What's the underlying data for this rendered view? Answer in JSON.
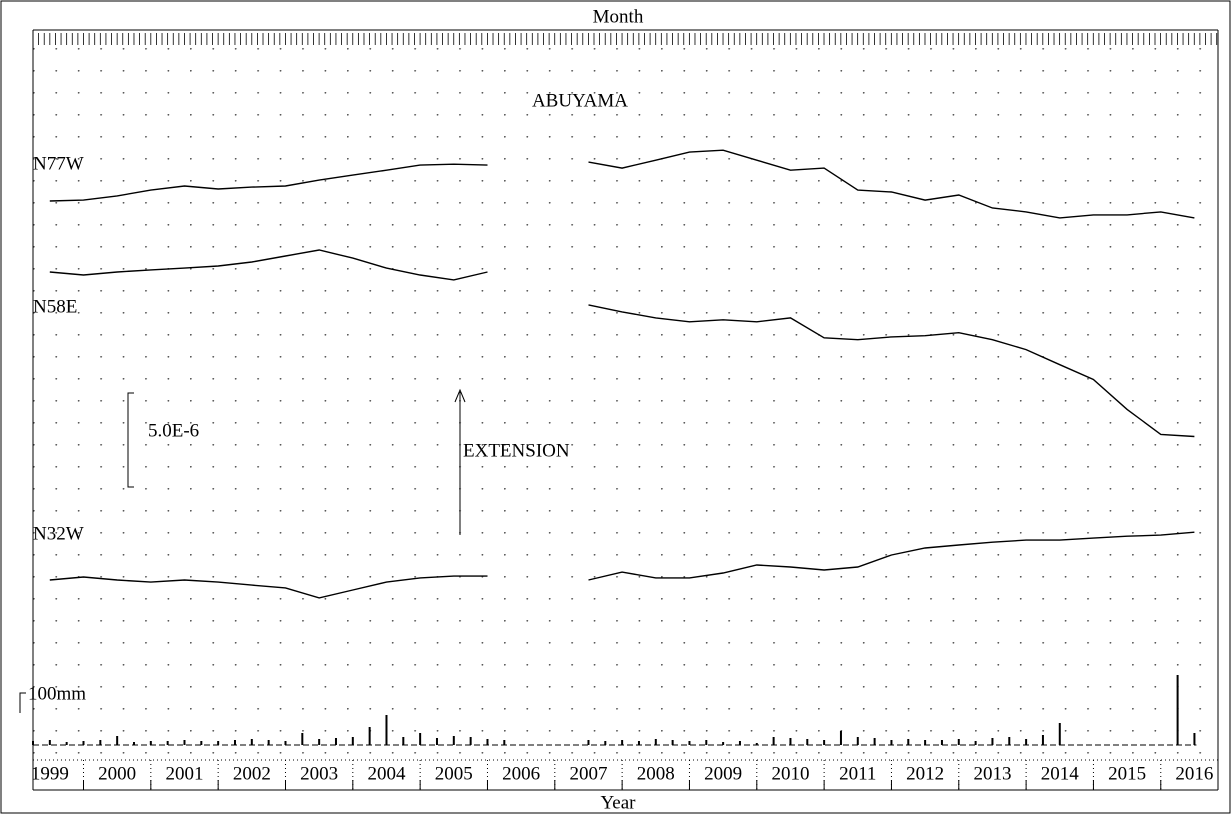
{
  "chart_data": [
    {
      "type": "line",
      "title": "ABUYAMA",
      "top_label": "Month",
      "x_label": "Year",
      "annotation": "EXTENSION",
      "scale_bar": {
        "label": "5.0E-6",
        "value": 5e-06
      },
      "xlim": [
        1999.25,
        2016.85
      ],
      "xticks": [
        2000,
        2001,
        2002,
        2003,
        2004,
        2005,
        2006,
        2007,
        2008,
        2009,
        2010,
        2011,
        2012,
        2013,
        2014,
        2015,
        2016
      ],
      "categories": [
        "1999",
        "2000",
        "2001",
        "2002",
        "2003",
        "2004",
        "2005",
        "2006",
        "2007",
        "2008",
        "2009",
        "2010",
        "2011",
        "2012",
        "2013",
        "2014",
        "2015",
        "2016"
      ],
      "x": [
        1999.5,
        2000,
        2000.5,
        2001,
        2001.5,
        2002,
        2002.5,
        2003,
        2003.5,
        2004,
        2004.5,
        2005,
        2005.5,
        2006,
        2006.5,
        2007,
        2007.5,
        2008,
        2008.5,
        2009,
        2009.5,
        2010,
        2010.5,
        2011,
        2011.5,
        2012,
        2012.5,
        2013,
        2013.5,
        2014,
        2014.5,
        2015,
        2015.5,
        2016,
        2016.5
      ],
      "grid": true,
      "series": [
        {
          "name": "N77W",
          "color": "#000000",
          "values": [
            0,
            5e-08,
            2.7e-07,
            5.8e-07,
            8e-07,
            6.4e-07,
            7.4e-07,
            8e-07,
            1.11e-06,
            1.38e-06,
            1.64e-06,
            1.91e-06,
            1.96e-06,
            1.91e-06,
            null,
            null,
            2.07e-06,
            1.75e-06,
            2.17e-06,
            2.6e-06,
            2.7e-06,
            2.17e-06,
            1.64e-06,
            1.75e-06,
            5.8e-07,
            4.8e-07,
            5e-08,
            3.2e-07,
            -3.7e-07,
            -5.8e-07,
            -9e-07,
            -7.4e-07,
            -7.4e-07,
            -5.8e-07,
            -9e-07
          ]
        },
        {
          "name": "N58E",
          "color": "#000000",
          "values": [
            0,
            -1.6e-07,
            0,
            1.1e-07,
            2.1e-07,
            3.2e-07,
            5.3e-07,
            8.5e-07,
            1.17e-06,
            7.4e-07,
            2.1e-07,
            -1.6e-07,
            -4.2e-07,
            0,
            null,
            null,
            -1.75e-06,
            -2.12e-06,
            -2.44e-06,
            -2.65e-06,
            -2.54e-06,
            -2.65e-06,
            -2.44e-06,
            -3.5e-06,
            -3.6e-06,
            -3.45e-06,
            -3.39e-06,
            -3.23e-06,
            -3.6e-06,
            -4.13e-06,
            -4.93e-06,
            -5.72e-06,
            -7.31e-06,
            -8.64e-06,
            -8.75e-06
          ]
        },
        {
          "name": "N32W",
          "color": "#000000",
          "values": [
            0,
            1.6e-07,
            0,
            -1.1e-07,
            0,
            -1.1e-07,
            -2.7e-07,
            -4.2e-07,
            -9.5e-07,
            -5.3e-07,
            -1.1e-07,
            1.1e-07,
            2.1e-07,
            2.1e-07,
            null,
            null,
            0,
            4.2e-07,
            1.1e-07,
            1.1e-07,
            3.7e-07,
            8e-07,
            6.9e-07,
            5.3e-07,
            6.9e-07,
            1.33e-06,
            1.7e-06,
            1.86e-06,
            2.01e-06,
            2.12e-06,
            2.12e-06,
            2.23e-06,
            2.33e-06,
            2.39e-06,
            2.54e-06
          ]
        }
      ]
    },
    {
      "type": "bar",
      "color": "#000000",
      "scale_bar": {
        "label": "100mm",
        "value": 100
      },
      "x": [
        1999.25,
        1999.5,
        1999.75,
        2000,
        2000.25,
        2000.5,
        2000.75,
        2001,
        2001.25,
        2001.5,
        2001.75,
        2002,
        2002.25,
        2002.5,
        2002.75,
        2003,
        2003.25,
        2003.5,
        2003.75,
        2004,
        2004.25,
        2004.5,
        2004.75,
        2005,
        2005.25,
        2005.5,
        2005.75,
        2006,
        2006.25,
        2007.5,
        2007.75,
        2008,
        2008.25,
        2008.5,
        2008.75,
        2009,
        2009.25,
        2009.5,
        2009.75,
        2010,
        2010.25,
        2010.5,
        2010.75,
        2011,
        2011.25,
        2011.5,
        2011.75,
        2012,
        2012.25,
        2012.5,
        2012.75,
        2013,
        2013.25,
        2013.5,
        2013.75,
        2014,
        2014.25,
        2014.5,
        2016.25,
        2016.5
      ],
      "values": [
        20,
        25,
        15,
        20,
        25,
        45,
        15,
        20,
        20,
        25,
        20,
        20,
        25,
        30,
        25,
        20,
        60,
        30,
        35,
        40,
        90,
        150,
        40,
        60,
        35,
        45,
        40,
        30,
        25,
        25,
        20,
        25,
        20,
        30,
        25,
        20,
        25,
        15,
        20,
        10,
        40,
        35,
        30,
        25,
        70,
        40,
        35,
        25,
        30,
        25,
        25,
        30,
        20,
        35,
        40,
        30,
        50,
        110,
        350,
        60
      ]
    }
  ]
}
